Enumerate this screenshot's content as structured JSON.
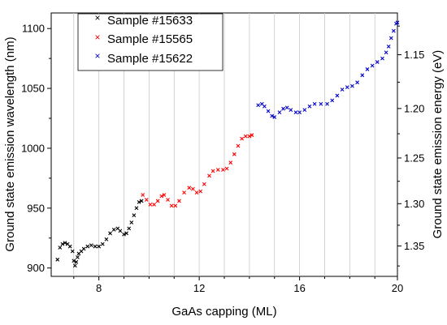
{
  "chart_data": {
    "type": "scatter",
    "xlabel": "GaAs capping (ML)",
    "ylabel": "Ground state emission wavelength (nm)",
    "y2label": "Ground state emission energy (eV)",
    "xlim": [
      6.1,
      19.9
    ],
    "ylim": [
      893,
      1113
    ],
    "x_ticks": [
      8,
      12,
      16,
      20
    ],
    "y_ticks": [
      900,
      950,
      1000,
      1050,
      1100
    ],
    "y2_ticks": [
      1.15,
      1.2,
      1.25,
      1.3,
      1.35
    ],
    "grid": "vertical",
    "legend_position": "top-left",
    "series": [
      {
        "name": "Sample #15633",
        "color": "#000000",
        "points": [
          [
            6.35,
            907
          ],
          [
            6.45,
            917
          ],
          [
            6.55,
            920
          ],
          [
            6.65,
            921
          ],
          [
            6.75,
            920
          ],
          [
            6.85,
            918
          ],
          [
            6.95,
            914
          ],
          [
            7.0,
            906
          ],
          [
            7.05,
            902
          ],
          [
            7.1,
            905
          ],
          [
            7.15,
            909
          ],
          [
            7.2,
            912
          ],
          [
            7.3,
            914
          ],
          [
            7.4,
            916
          ],
          [
            7.55,
            918
          ],
          [
            7.7,
            919
          ],
          [
            7.85,
            918
          ],
          [
            8.0,
            918
          ],
          [
            8.15,
            920
          ],
          [
            8.3,
            924
          ],
          [
            8.45,
            929
          ],
          [
            8.6,
            932
          ],
          [
            8.75,
            933
          ],
          [
            8.85,
            931
          ],
          [
            9.0,
            928
          ],
          [
            9.1,
            929
          ],
          [
            9.2,
            933
          ],
          [
            9.3,
            938
          ],
          [
            9.4,
            944
          ],
          [
            9.5,
            950
          ],
          [
            9.6,
            955
          ],
          [
            9.7,
            956
          ]
        ]
      },
      {
        "name": "Sample #15565",
        "color": "#ff0000",
        "points": [
          [
            9.75,
            961
          ],
          [
            9.9,
            957
          ],
          [
            10.05,
            953
          ],
          [
            10.2,
            953
          ],
          [
            10.35,
            956
          ],
          [
            10.5,
            960
          ],
          [
            10.6,
            961
          ],
          [
            10.75,
            957
          ],
          [
            10.9,
            952
          ],
          [
            11.05,
            952
          ],
          [
            11.2,
            956
          ],
          [
            11.4,
            963
          ],
          [
            11.6,
            967
          ],
          [
            11.75,
            966
          ],
          [
            11.9,
            963
          ],
          [
            12.05,
            964
          ],
          [
            12.2,
            970
          ],
          [
            12.4,
            977
          ],
          [
            12.55,
            981
          ],
          [
            12.75,
            982
          ],
          [
            12.95,
            982
          ],
          [
            13.1,
            983
          ],
          [
            13.25,
            988
          ],
          [
            13.4,
            995
          ],
          [
            13.55,
            1002
          ],
          [
            13.7,
            1008
          ],
          [
            13.85,
            1010
          ],
          [
            14.0,
            1010
          ],
          [
            14.1,
            1011
          ]
        ]
      },
      {
        "name": "Sample #15622",
        "color": "#0000cc",
        "points": [
          [
            14.35,
            1036
          ],
          [
            14.5,
            1037
          ],
          [
            14.6,
            1035
          ],
          [
            14.75,
            1031
          ],
          [
            14.9,
            1027
          ],
          [
            15.0,
            1026
          ],
          [
            15.2,
            1030
          ],
          [
            15.35,
            1033
          ],
          [
            15.5,
            1034
          ],
          [
            15.65,
            1032
          ],
          [
            15.85,
            1030
          ],
          [
            16.0,
            1030
          ],
          [
            16.2,
            1032
          ],
          [
            16.4,
            1035
          ],
          [
            16.6,
            1037
          ],
          [
            16.85,
            1037
          ],
          [
            17.1,
            1037
          ],
          [
            17.3,
            1040
          ],
          [
            17.5,
            1044
          ],
          [
            17.7,
            1049
          ],
          [
            17.9,
            1051
          ],
          [
            18.1,
            1052
          ],
          [
            18.3,
            1055
          ],
          [
            18.5,
            1061
          ],
          [
            18.7,
            1066
          ],
          [
            18.9,
            1069
          ],
          [
            19.1,
            1072
          ],
          [
            19.3,
            1075
          ],
          [
            19.45,
            1080
          ],
          [
            19.55,
            1085
          ],
          [
            19.65,
            1092
          ],
          [
            19.75,
            1098
          ],
          [
            19.85,
            1104
          ],
          [
            19.9,
            1105
          ]
        ]
      }
    ]
  }
}
